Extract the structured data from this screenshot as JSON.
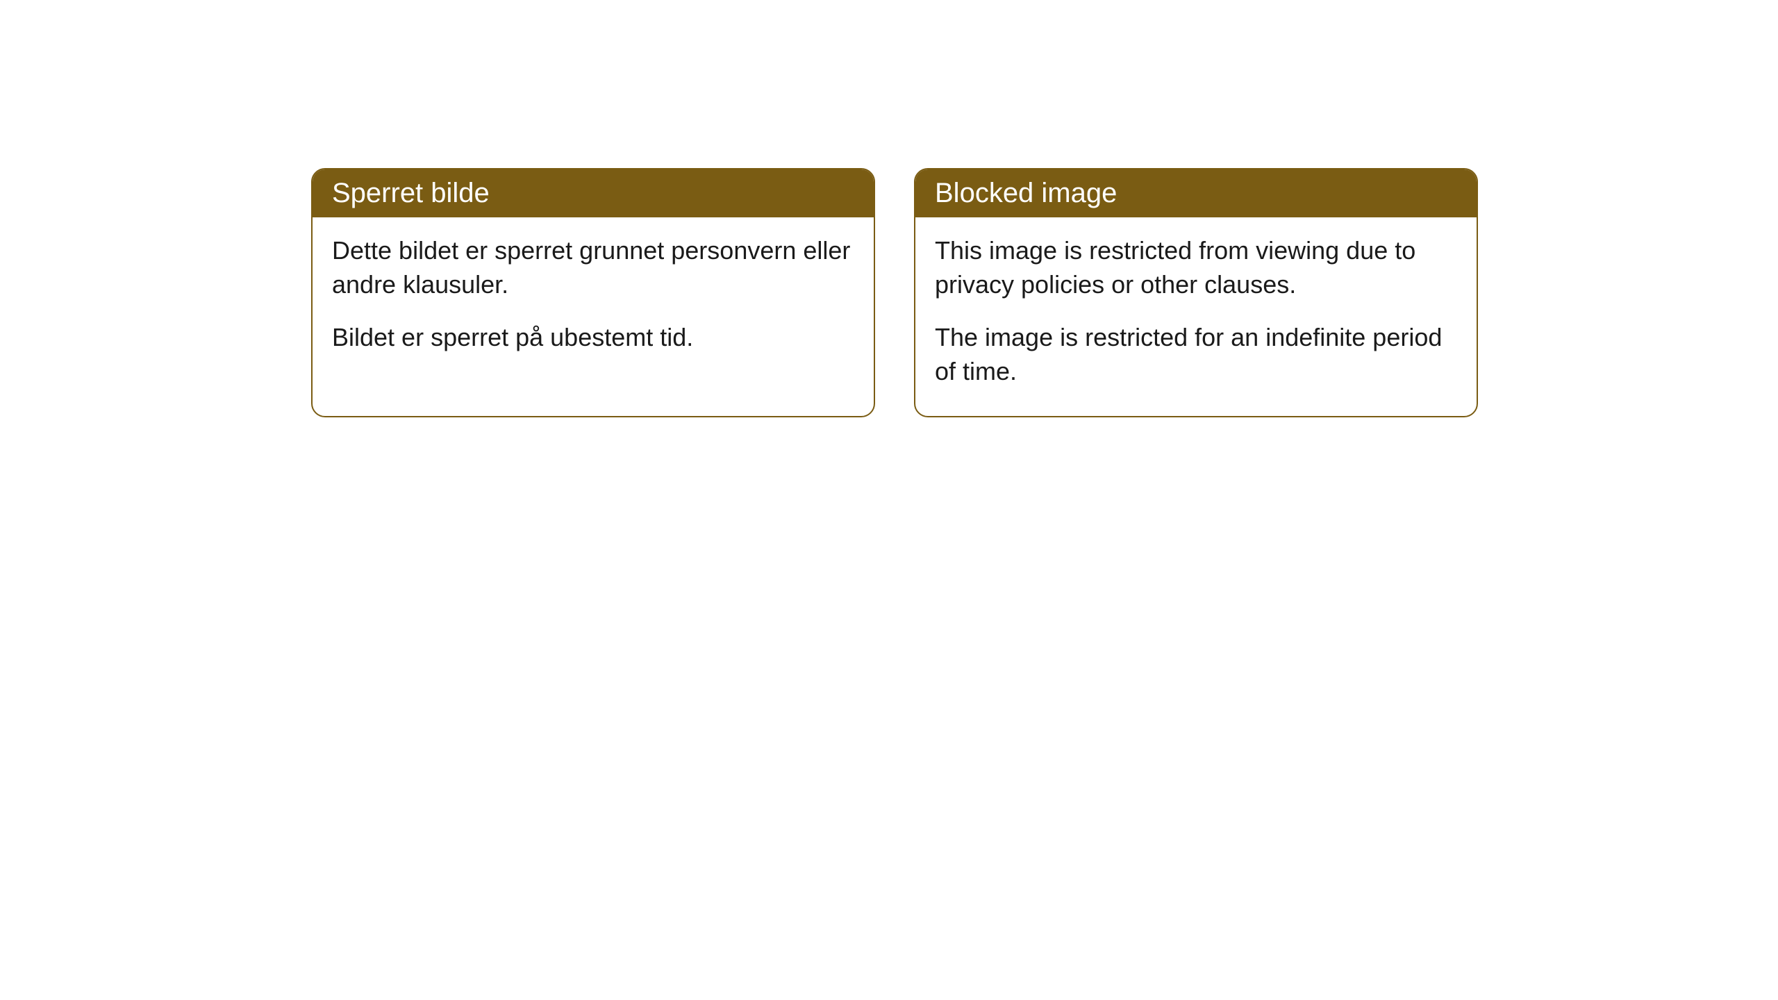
{
  "cards": [
    {
      "title": "Sperret bilde",
      "paragraph1": "Dette bildet er sperret grunnet personvern eller andre klausuler.",
      "paragraph2": "Bildet er sperret på ubestemt tid."
    },
    {
      "title": "Blocked image",
      "paragraph1": "This image is restricted from viewing due to privacy policies or other clauses.",
      "paragraph2": "The image is restricted for an indefinite period of time."
    }
  ],
  "style": {
    "header_bg_color": "#7a5c13",
    "header_text_color": "#ffffff",
    "card_border_color": "#7a5c13",
    "card_bg_color": "#ffffff",
    "body_text_color": "#1a1a1a",
    "border_radius": 20,
    "header_fontsize": 40,
    "body_fontsize": 36
  }
}
